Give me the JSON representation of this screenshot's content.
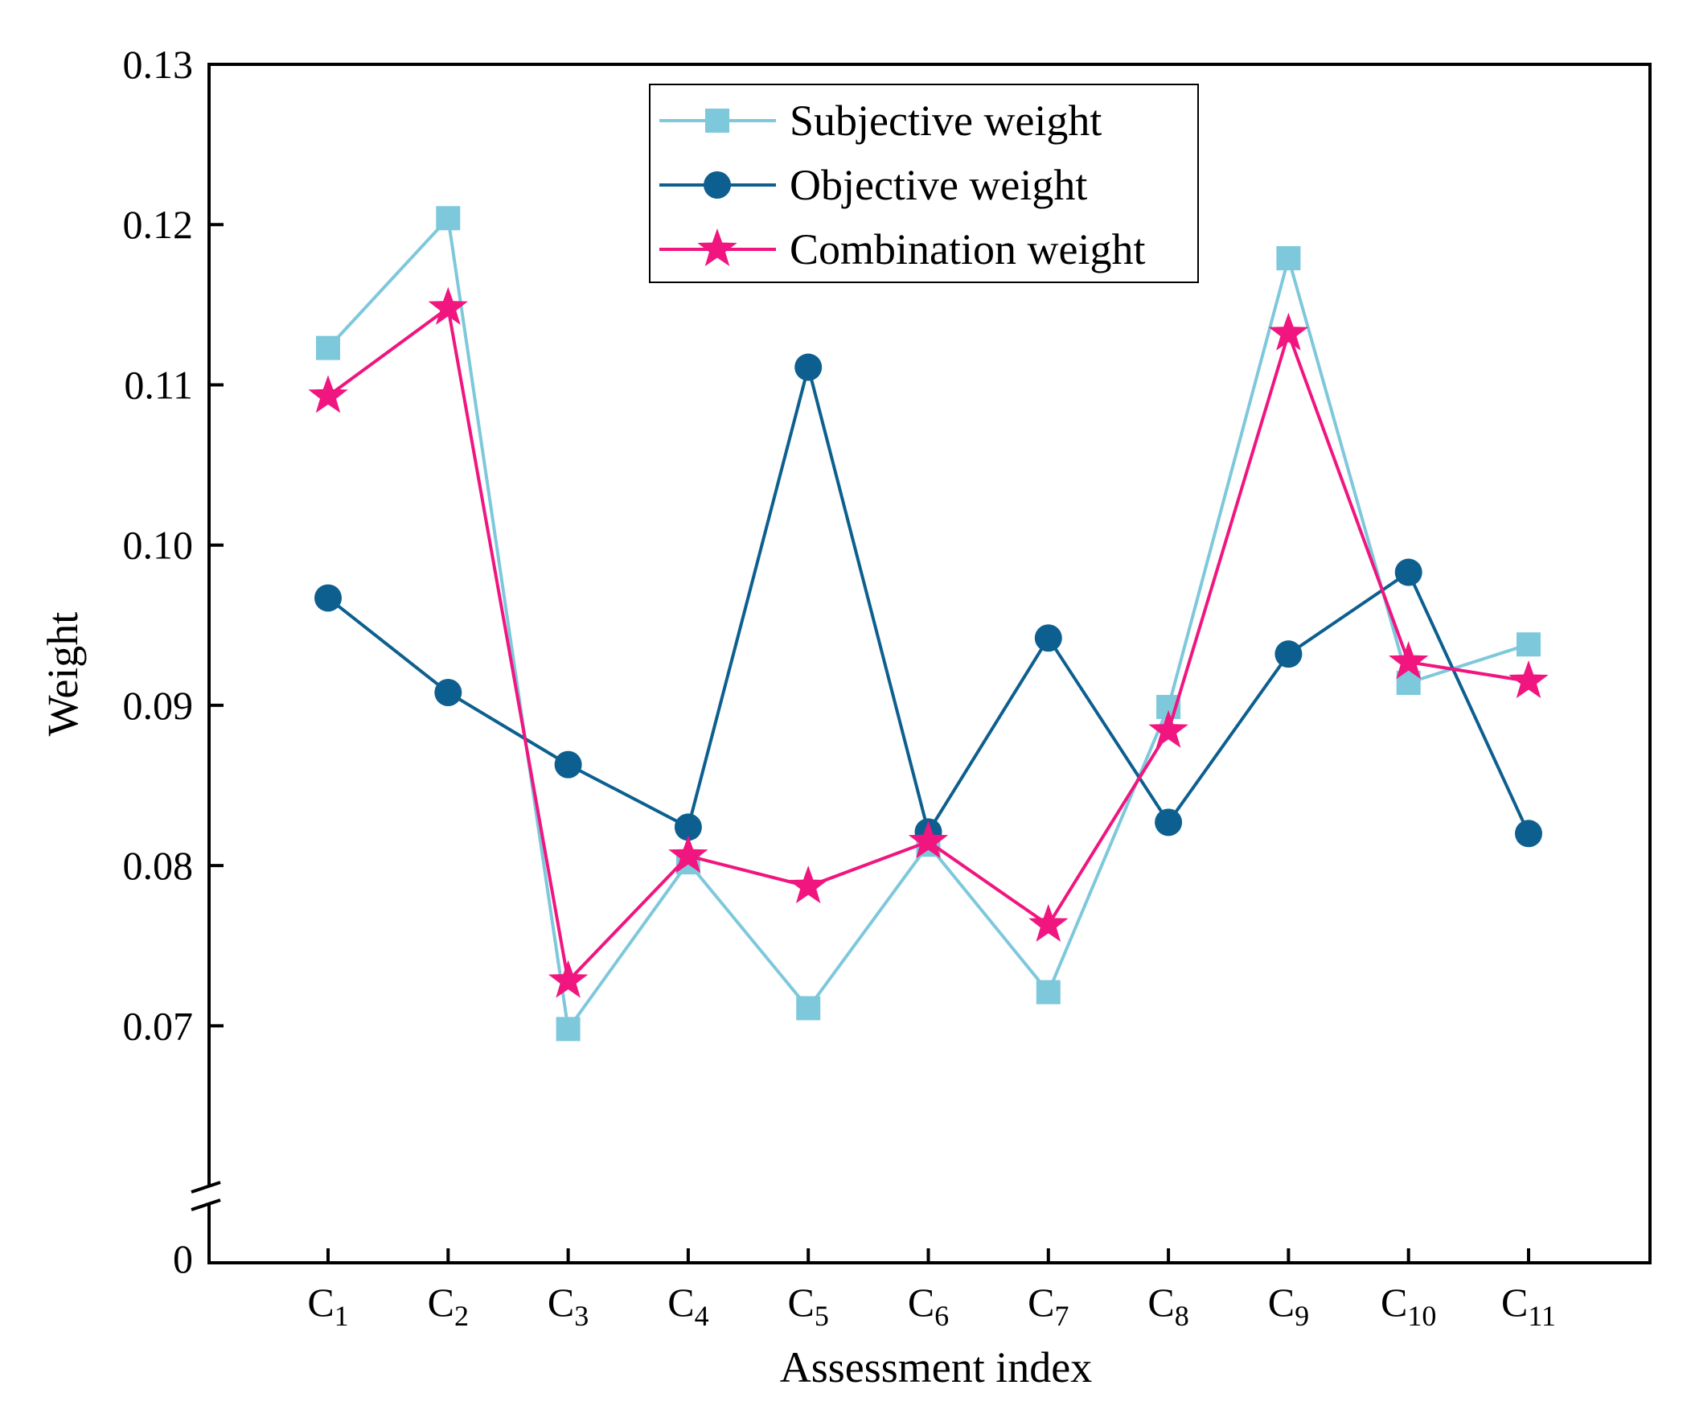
{
  "chart_data": {
    "type": "line",
    "xlabel": "Assessment index",
    "ylabel": "Weight",
    "categories": [
      {
        "base": "C",
        "sub": "1"
      },
      {
        "base": "C",
        "sub": "2"
      },
      {
        "base": "C",
        "sub": "3"
      },
      {
        "base": "C",
        "sub": "4"
      },
      {
        "base": "C",
        "sub": "5"
      },
      {
        "base": "C",
        "sub": "6"
      },
      {
        "base": "C",
        "sub": "7"
      },
      {
        "base": "C",
        "sub": "8"
      },
      {
        "base": "C",
        "sub": "9"
      },
      {
        "base": "C",
        "sub": "10"
      },
      {
        "base": "C",
        "sub": "11"
      }
    ],
    "ylim": [
      0.065,
      0.13
    ],
    "axis_break": {
      "below": 0.065,
      "zero_label": "0"
    },
    "yticks": [
      {
        "value": 0.07,
        "label": "0.07"
      },
      {
        "value": 0.08,
        "label": "0.08"
      },
      {
        "value": 0.09,
        "label": "0.09"
      },
      {
        "value": 0.1,
        "label": "0.10"
      },
      {
        "value": 0.11,
        "label": "0.11"
      },
      {
        "value": 0.12,
        "label": "0.12"
      },
      {
        "value": 0.13,
        "label": "0.13"
      }
    ],
    "grid": false,
    "legend_position": "top-center",
    "series": [
      {
        "name": "Subjective weight",
        "marker": "square",
        "color": "#7ec8dc",
        "values": [
          0.1123,
          0.1204,
          0.0698,
          0.0802,
          0.0711,
          0.0813,
          0.0721,
          0.0899,
          0.1179,
          0.0914,
          0.0938
        ]
      },
      {
        "name": "Objective weight",
        "marker": "circle",
        "color": "#0d5f8f",
        "values": [
          0.0967,
          0.0908,
          0.0863,
          0.0824,
          0.1111,
          0.0821,
          0.0942,
          0.0827,
          0.0932,
          0.0983,
          0.082
        ]
      },
      {
        "name": "Combination weight",
        "marker": "star",
        "color": "#f0157f",
        "values": [
          0.1093,
          0.1148,
          0.0728,
          0.0806,
          0.0787,
          0.0815,
          0.0763,
          0.0884,
          0.1132,
          0.0927,
          0.0915
        ]
      }
    ]
  }
}
